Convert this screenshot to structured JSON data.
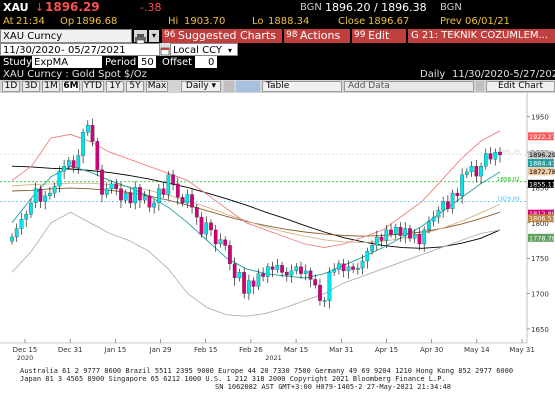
{
  "quote": {
    "ticker": "XAU",
    "arrow": "↓",
    "last": "1896.29",
    "change": "-.38",
    "source_label": "BGN",
    "bid_ask": "1896.20 / 1896.38",
    "source_label2": "BGN",
    "time_label": "At",
    "time": "21:34",
    "open_label": "Op",
    "open": "1896.68",
    "high_label": "Hi",
    "high": "1903.70",
    "low_label": "Lo",
    "low": "1888.34",
    "close_label": "Close",
    "close": "1896.67",
    "date_label": "Prev",
    "date": "06/01/21"
  },
  "toolbar": {
    "security": "XAU Curncy",
    "print_icon": "printer-icon",
    "menu_label": "▾",
    "suggested_num": "96",
    "suggested_label": "Suggested Charts",
    "actions_num": "98",
    "actions_label": "Actions",
    "edit_num": "99",
    "edit_label": "Edit",
    "tab_title": "G 21: TEKNIK COZUMLEM..."
  },
  "settings": {
    "start_date": "11/30/2020",
    "end_date": "05/27/2021",
    "currency": "Local CCY",
    "study_label": "Study",
    "study_value": "ExpMA",
    "period_label": "Period",
    "period_value": "50",
    "offset_label": "Offset",
    "offset_value": "0"
  },
  "subheader": {
    "name": "XAU Curncy : Gold Spot  $/Oz",
    "freq": "Daily",
    "range": "11/30/2020-5/27/2021"
  },
  "periods": [
    "1D",
    "3D",
    "1M",
    "6M",
    "YTD",
    "1Y",
    "5Y",
    "Max"
  ],
  "active_period": "6M",
  "daily_select": "Daily ▾",
  "table_label": "Table",
  "add_data_label": "Add Data",
  "edit_chart_label": "Edit Chart",
  "colors": {
    "up": "#00e5ee",
    "down": "#d0007a",
    "last_tag": "#ff5a5a"
  },
  "chart_data": {
    "type": "candlestick",
    "x_ticks": [
      "Dec 15",
      "Dec 31",
      "Jan 15",
      "Jan 29",
      "Feb 15",
      "Feb 26",
      "Mar 15",
      "Mar 31",
      "Apr 15",
      "Apr 30",
      "May 14",
      "May 31"
    ],
    "x_years": [
      "2020",
      "2021"
    ],
    "y_ticks": [
      1650,
      1700,
      1750,
      1800,
      1850,
      1900,
      1950
    ],
    "ylim": [
      1640,
      1975
    ],
    "closes": [
      1780,
      1792,
      1805,
      1812,
      1828,
      1848,
      1830,
      1838,
      1842,
      1852,
      1873,
      1880,
      1888,
      1878,
      1895,
      1928,
      1938,
      1915,
      1875,
      1840,
      1848,
      1855,
      1848,
      1832,
      1842,
      1828,
      1850,
      1832,
      1838,
      1822,
      1828,
      1848,
      1840,
      1868,
      1855,
      1836,
      1828,
      1840,
      1822,
      1808,
      1784,
      1800,
      1790,
      1770,
      1776,
      1768,
      1742,
      1722,
      1730,
      1700,
      1718,
      1710,
      1728,
      1724,
      1738,
      1734,
      1740,
      1730,
      1726,
      1732,
      1738,
      1728,
      1732,
      1720,
      1712,
      1690,
      1690,
      1730,
      1734,
      1742,
      1732,
      1738,
      1734,
      1736,
      1746,
      1760,
      1768,
      1780,
      1775,
      1790,
      1784,
      1794,
      1782,
      1792,
      1778,
      1784,
      1770,
      1790,
      1802,
      1808,
      1818,
      1830,
      1820,
      1842,
      1838,
      1868,
      1872,
      1880,
      1866,
      1880,
      1898,
      1890,
      1900,
      1896
    ],
    "ma_lines": [
      {
        "color": "#000000",
        "values": [
          1880,
          1879,
          1877,
          1876,
          1874,
          1871,
          1867,
          1862,
          1856,
          1850,
          1842,
          1834,
          1825,
          1815,
          1806,
          1796,
          1787,
          1779,
          1773,
          1768,
          1765,
          1764,
          1766,
          1771,
          1778,
          1790
        ]
      },
      {
        "color": "#8b5a2b",
        "values": [
          1845,
          1846,
          1848,
          1849,
          1848,
          1846,
          1843,
          1838,
          1832,
          1825,
          1817,
          1809,
          1802,
          1796,
          1791,
          1787,
          1784,
          1782,
          1781,
          1782,
          1784,
          1787,
          1792,
          1798,
          1806,
          1815
        ]
      },
      {
        "color": "#d2b48c",
        "values": [
          1852,
          1854,
          1855,
          1856,
          1856,
          1854,
          1851,
          1846,
          1839,
          1831,
          1822,
          1812,
          1803,
          1794,
          1787,
          1781,
          1776,
          1773,
          1772,
          1774,
          1778,
          1784,
          1792,
          1802,
          1814,
          1826
        ]
      },
      {
        "color": "#20a0a0",
        "values": [
          1800,
          1835,
          1865,
          1880,
          1872,
          1860,
          1850,
          1838,
          1822,
          1800,
          1775,
          1750,
          1735,
          1728,
          1725,
          1722,
          1728,
          1740,
          1752,
          1765,
          1780,
          1795,
          1815,
          1835,
          1855,
          1872
        ]
      },
      {
        "color": "#f08080",
        "values": [
          1860,
          1880,
          1920,
          1925,
          1915,
          1900,
          1890,
          1880,
          1870,
          1860,
          1840,
          1820,
          1800,
          1790,
          1780,
          1770,
          1765,
          1770,
          1780,
          1790,
          1810,
          1830,
          1860,
          1890,
          1915,
          1930
        ]
      },
      {
        "color": "#b0b0b0",
        "values": [
          1730,
          1760,
          1800,
          1815,
          1800,
          1785,
          1775,
          1760,
          1735,
          1700,
          1680,
          1670,
          1668,
          1672,
          1680,
          1690,
          1700,
          1715,
          1725,
          1735,
          1745,
          1755,
          1765,
          1775,
          1785,
          1790
        ]
      }
    ],
    "hlines": [
      {
        "value": 1896.29,
        "color": "#d3d3d3"
      },
      {
        "value": 1858.02,
        "color": "#00c000"
      },
      {
        "value": 1829.89,
        "color": "#40c0ff"
      }
    ],
    "hline_labels": [
      "1896.29",
      "1858.02",
      "1829.89"
    ],
    "price_tags": [
      {
        "value": 1922.27,
        "label": "1922.27",
        "bg": "#ff5a5a",
        "fg": "#ffffff"
      },
      {
        "value": 1896.29,
        "label": "1896.29",
        "bg": "#c0c0c0",
        "fg": "#000000"
      },
      {
        "value": 1884.47,
        "label": "1884.47",
        "bg": "#20a0a0",
        "fg": "#ffffff"
      },
      {
        "value": 1872.78,
        "label": "1872.78",
        "bg": "#f0c8a0",
        "fg": "#000000"
      },
      {
        "value": 1855.11,
        "label": "1855.11",
        "bg": "#000000",
        "fg": "#ffffff"
      },
      {
        "value": 1812.89,
        "label": "1812.89",
        "bg": "#d0007a",
        "fg": "#ffffff"
      },
      {
        "value": 1806.51,
        "label": "1806.51",
        "bg": "#c08040",
        "fg": "#ffffff"
      },
      {
        "value": 1778.78,
        "label": "1778.78",
        "bg": "#60a060",
        "fg": "#ffffff"
      }
    ]
  },
  "footer": {
    "line1": "Australia 61 2 9777 8600 Brazil 5511 2395 9000 Europe 44 20 7330 7500 Germany 49 69 9204 1210 Hong Kong 852 2977 6000",
    "line2": "Japan 81 3 4565 8900         Singapore 65 6212 1000         U.S. 1 212 318 2000         Copyright 2021 Bloomberg Finance L.P.",
    "line3": "SN 1062082 AST  GMT+3:00 H079-1405-2 27-May-2021 21:34:48"
  }
}
